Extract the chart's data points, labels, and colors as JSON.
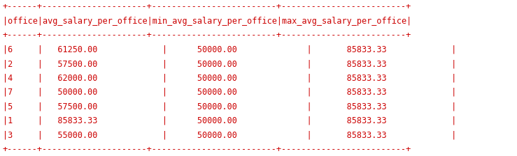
{
  "headers": [
    "office",
    "avg_salary_per_office",
    "min_avg_salary_per_office",
    "max_avg_salary_per_office"
  ],
  "rows": [
    [
      "6",
      "61250.00",
      "50000.00",
      "85833.33"
    ],
    [
      "2",
      "57500.00",
      "50000.00",
      "85833.33"
    ],
    [
      "4",
      "62000.00",
      "50000.00",
      "85833.33"
    ],
    [
      "7",
      "50000.00",
      "50000.00",
      "85833.33"
    ],
    [
      "5",
      "57500.00",
      "50000.00",
      "85833.33"
    ],
    [
      "1",
      "85833.33",
      "50000.00",
      "85833.33"
    ],
    [
      "3",
      "55000.00",
      "50000.00",
      "85833.33"
    ]
  ],
  "bg_color": "#ffffff",
  "text_color": "#cc0000",
  "font_size": 8.5,
  "sep": "+------+---------------------+-------------------------+-------------------------+",
  "header": "|office|avg_salary_per_office|min_avg_salary_per_office|max_avg_salary_per_office|"
}
